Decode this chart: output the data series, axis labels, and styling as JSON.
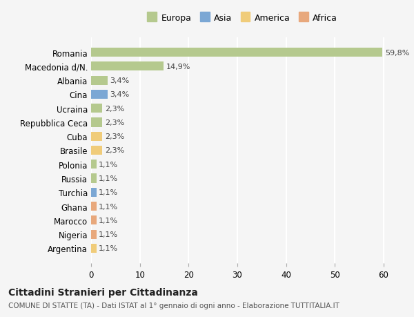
{
  "countries": [
    "Romania",
    "Macedonia d/N.",
    "Albania",
    "Cina",
    "Ucraina",
    "Repubblica Ceca",
    "Cuba",
    "Brasile",
    "Polonia",
    "Russia",
    "Turchia",
    "Ghana",
    "Marocco",
    "Nigeria",
    "Argentina"
  ],
  "values": [
    59.8,
    14.9,
    3.4,
    3.4,
    2.3,
    2.3,
    2.3,
    2.3,
    1.1,
    1.1,
    1.1,
    1.1,
    1.1,
    1.1,
    1.1
  ],
  "labels": [
    "59,8%",
    "14,9%",
    "3,4%",
    "3,4%",
    "2,3%",
    "2,3%",
    "2,3%",
    "2,3%",
    "1,1%",
    "1,1%",
    "1,1%",
    "1,1%",
    "1,1%",
    "1,1%",
    "1,1%"
  ],
  "continents": [
    "Europa",
    "Europa",
    "Europa",
    "Asia",
    "Europa",
    "Europa",
    "America",
    "America",
    "Europa",
    "Europa",
    "Asia",
    "Africa",
    "Africa",
    "Africa",
    "America"
  ],
  "continent_colors": {
    "Europa": "#b5c98e",
    "Asia": "#7ba7d4",
    "America": "#f0cc7a",
    "Africa": "#e8a87c"
  },
  "legend_order": [
    "Europa",
    "Asia",
    "America",
    "Africa"
  ],
  "bg_color": "#f5f5f5",
  "grid_color": "#ffffff",
  "title": "Cittadini Stranieri per Cittadinanza",
  "subtitle": "COMUNE DI STATTE (TA) - Dati ISTAT al 1° gennaio di ogni anno - Elaborazione TUTTITALIA.IT",
  "xlim": [
    0,
    62
  ],
  "xticks": [
    0,
    10,
    20,
    30,
    40,
    50,
    60
  ]
}
